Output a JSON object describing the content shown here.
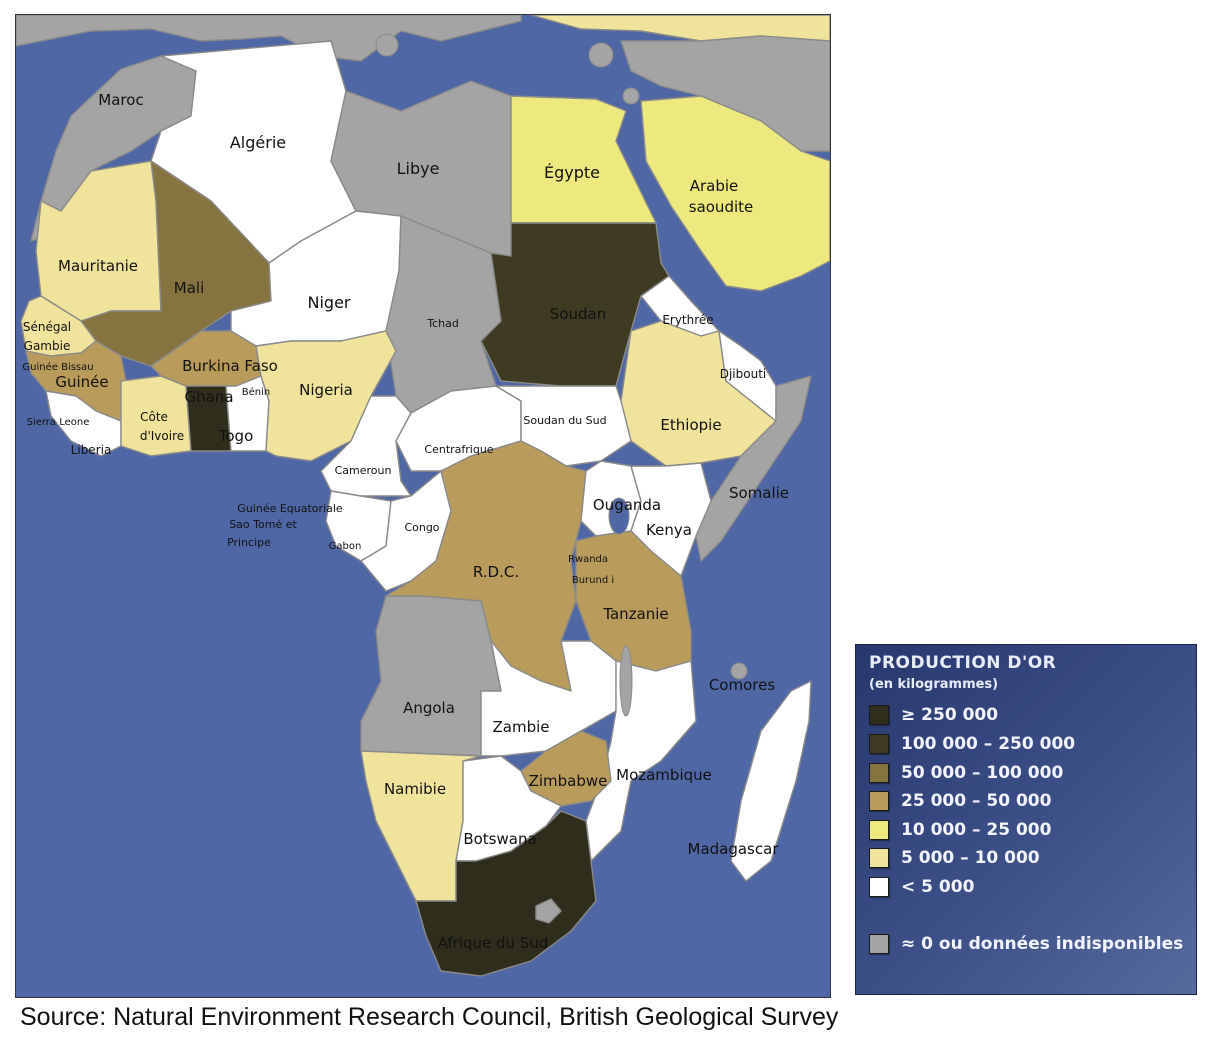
{
  "map": {
    "colors": {
      "sea": "#4f67a5",
      "gray": "#a4a4a4",
      "c_250k_plus": "#2f2e1c",
      "c_100k_250k": "#3e3b22",
      "c_50k_100k": "#857340",
      "c_25k_50k": "#b99b5b",
      "c_10k_25k": "#ede97e",
      "c_5k_10k": "#f0e39b",
      "c_under_5k": "#ffffff"
    },
    "countries": {
      "maroc": "Maroc",
      "algerie": "Algérie",
      "libye": "Libye",
      "egypte": "Égypte",
      "arabie_l1": "Arabie",
      "arabie_l2": "saoudite",
      "mauritanie": "Mauritanie",
      "mali": "Mali",
      "niger": "Niger",
      "tchad": "Tchad",
      "soudan": "Soudan",
      "erythree": "Erythrée",
      "senegal": "Sénégal",
      "gambie": "Gambie",
      "guinee_bissau": "Guinée Bissau",
      "guinee": "Guinée",
      "burkina": "Burkina Faso",
      "benin": "Bénin",
      "nigeria": "Nigeria",
      "djibouti": "Djibouti",
      "ghana": "Ghana",
      "sierra_leone": "Sierra Leone",
      "cote_l1": "Côte",
      "cote_l2": "d'Ivoire",
      "togo": "Togo",
      "liberia": "Liberia",
      "soudan_sud": "Soudan du Sud",
      "ethiopie": "Ethiopie",
      "centrafrique": "Centrafrique",
      "cameroun": "Cameroun",
      "somalie": "Somalie",
      "guinee_eq": "Guinée Equatoriale",
      "sao_tome_l1": "Sao Tomé et",
      "sao_tome_l2": "Principe",
      "gabon": "Gabon",
      "congo": "Congo",
      "ouganda": "Ouganda",
      "kenya": "Kenya",
      "rdc": "R.D.C.",
      "rwanda": "Rwanda",
      "burundi": "Burund i",
      "tanzanie": "Tanzanie",
      "comores": "Comores",
      "angola": "Angola",
      "zambie": "Zambie",
      "zimbabwe": "Zimbabwe",
      "mozambique": "Mozambique",
      "namibie": "Namibie",
      "madagascar": "Madagascar",
      "botswana": "Botswana",
      "afrique_sud": "Afrique du Sud"
    }
  },
  "legend": {
    "title": "PRODUCTION D'OR",
    "subtitle": "(en kilogrammes)",
    "items": [
      {
        "label": "≥ 250 000",
        "color": "#2f2e1c"
      },
      {
        "label": "100 000 – 250 000",
        "color": "#3e3b22"
      },
      {
        "label": "50 000 – 100 000",
        "color": "#857340"
      },
      {
        "label": "25 000 – 50 000",
        "color": "#b99b5b"
      },
      {
        "label": "10 000 – 25 000",
        "color": "#ede97e"
      },
      {
        "label": "5 000 – 10 000",
        "color": "#f0e39b"
      },
      {
        "label": "< 5 000",
        "color": "#ffffff"
      },
      {
        "label": "≈ 0 ou données indisponibles",
        "color": "#a4a4a4"
      }
    ]
  },
  "source": "Source: Natural Environment Research Council, British Geological Survey"
}
